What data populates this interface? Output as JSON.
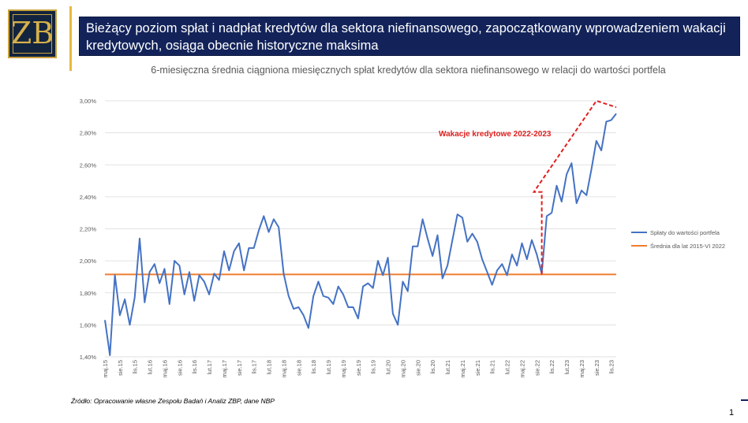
{
  "logo": {
    "letter": "ZB"
  },
  "slide": {
    "title": "Bieżący poziom spłat i nadpłat kredytów dla sektora niefinansowego, zapoczątkowany wprowadzeniem wakacji kredytowych, osiąga obecnie historyczne maksima",
    "source": "Źródło: Opracowanie własne Zespołu Badań i Analiz ZBP, dane NBP",
    "page_number": "1"
  },
  "colors": {
    "series": "#4472c4",
    "average": "#ed7d31",
    "annotation": "#e02020",
    "header": "#13235a"
  },
  "chart_data": {
    "type": "line",
    "title": "6-miesięczna średnia ciągniona miesięcznych spłat kredytów dla sektora niefinansowego w relacji do wartości portfela",
    "xlabel": "",
    "ylabel": "",
    "ylim": [
      1.4,
      3.0
    ],
    "y_ticks": [
      "1,40%",
      "1,60%",
      "1,80%",
      "2,00%",
      "2,20%",
      "2,40%",
      "2,60%",
      "2,80%",
      "3,00%"
    ],
    "grid": true,
    "legend_position": "right",
    "x_tick_labels": [
      "maj.15",
      "sie.15",
      "lis.15",
      "lut.16",
      "maj.16",
      "sie.16",
      "lis.16",
      "lut.17",
      "maj.17",
      "sie.17",
      "lis.17",
      "lut.18",
      "maj.18",
      "sie.18",
      "lis.18",
      "lut.19",
      "maj.19",
      "sie.19",
      "lis.19",
      "lut.20",
      "maj.20",
      "sie.20",
      "lis.20",
      "lut.21",
      "maj.21",
      "sie.21",
      "lis.21",
      "lut.22",
      "maj.22",
      "sie.22",
      "lis.22",
      "lut.23",
      "maj.23",
      "sie.23",
      "lis.23"
    ],
    "series": [
      {
        "name": "Spłaty do wartości portfela",
        "values": [
          1.63,
          1.41,
          1.91,
          1.66,
          1.76,
          1.6,
          1.77,
          2.14,
          1.74,
          1.93,
          1.98,
          1.86,
          1.95,
          1.73,
          2.0,
          1.97,
          1.79,
          1.93,
          1.75,
          1.91,
          1.87,
          1.79,
          1.92,
          1.88,
          2.06,
          1.94,
          2.06,
          2.11,
          1.94,
          2.08,
          2.08,
          2.19,
          2.28,
          2.18,
          2.26,
          2.21,
          1.92,
          1.78,
          1.7,
          1.71,
          1.66,
          1.58,
          1.78,
          1.87,
          1.78,
          1.77,
          1.73,
          1.84,
          1.79,
          1.71,
          1.71,
          1.64,
          1.84,
          1.86,
          1.83,
          2.0,
          1.91,
          2.02,
          1.67,
          1.6,
          1.87,
          1.81,
          2.09,
          2.09,
          2.26,
          2.14,
          2.03,
          2.16,
          1.89,
          1.97,
          2.13,
          2.29,
          2.27,
          2.12,
          2.17,
          2.12,
          2.01,
          1.93,
          1.85,
          1.94,
          1.98,
          1.91,
          2.04,
          1.97,
          2.11,
          2.01,
          2.13,
          2.04,
          1.92,
          2.28,
          2.3,
          2.47,
          2.37,
          2.54,
          2.61,
          2.36,
          2.44,
          2.41,
          2.57,
          2.75,
          2.69,
          2.87,
          2.88,
          2.92
        ]
      },
      {
        "name": "Średnia dla lat 2015-VI 2022",
        "value": 1.915
      }
    ],
    "annotations": [
      {
        "text": "Wakacje kredytowe 2022-2023"
      }
    ]
  }
}
